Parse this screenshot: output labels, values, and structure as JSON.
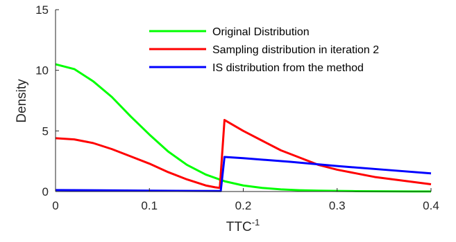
{
  "chart_data": {
    "type": "line",
    "xlabel": "TTC",
    "xlabel_superscript": "-1",
    "ylabel": "Density",
    "xlim": [
      0,
      0.4
    ],
    "ylim": [
      0,
      15
    ],
    "xticks": [
      0,
      0.1,
      0.2,
      0.3,
      0.4
    ],
    "xtick_labels": [
      "0",
      "0.1",
      "0.2",
      "0.3",
      "0.4"
    ],
    "yticks": [
      0,
      5,
      10,
      15
    ],
    "ytick_labels": [
      "0",
      "5",
      "10",
      "15"
    ],
    "grid": false,
    "legend_position": "top-right",
    "series": [
      {
        "name": "Original Distribution",
        "color": "#00ff00",
        "x": [
          0,
          0.02,
          0.04,
          0.06,
          0.08,
          0.1,
          0.12,
          0.14,
          0.16,
          0.18,
          0.2,
          0.22,
          0.24,
          0.26,
          0.28,
          0.3,
          0.32,
          0.34,
          0.36,
          0.38,
          0.4
        ],
        "y": [
          10.5,
          10.1,
          9.1,
          7.8,
          6.2,
          4.7,
          3.3,
          2.2,
          1.4,
          0.85,
          0.5,
          0.3,
          0.18,
          0.11,
          0.07,
          0.05,
          0.03,
          0.02,
          0.015,
          0.01,
          0.01
        ]
      },
      {
        "name": "Sampling distribution in iteration 2",
        "color": "#ff0000",
        "x": [
          0,
          0.02,
          0.04,
          0.06,
          0.08,
          0.1,
          0.12,
          0.14,
          0.16,
          0.17,
          0.175,
          0.18,
          0.2,
          0.22,
          0.24,
          0.26,
          0.28,
          0.3,
          0.32,
          0.34,
          0.36,
          0.38,
          0.4
        ],
        "y": [
          4.4,
          4.3,
          4.0,
          3.5,
          2.9,
          2.3,
          1.6,
          1.0,
          0.5,
          0.35,
          0.3,
          5.9,
          5.0,
          4.2,
          3.4,
          2.8,
          2.2,
          1.8,
          1.5,
          1.2,
          1.0,
          0.8,
          0.6
        ]
      },
      {
        "name": "IS distribution from the method",
        "color": "#0000ff",
        "x": [
          0,
          0.05,
          0.1,
          0.15,
          0.176,
          0.18,
          0.2,
          0.25,
          0.3,
          0.35,
          0.4
        ],
        "y": [
          0.12,
          0.1,
          0.07,
          0.05,
          0.04,
          2.85,
          2.75,
          2.45,
          2.1,
          1.8,
          1.5
        ]
      }
    ]
  }
}
